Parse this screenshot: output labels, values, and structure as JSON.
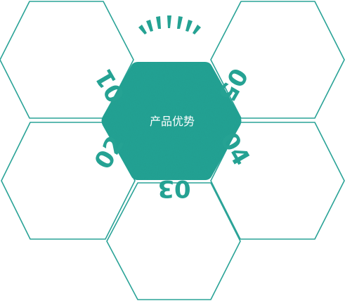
{
  "center": {
    "label": "产品优势",
    "color": "#26a495"
  },
  "outline_color": "#2aa397",
  "numbers": {
    "n01": "01",
    "n02": "02",
    "n03": "03",
    "n04": "04",
    "n05": "05"
  }
}
